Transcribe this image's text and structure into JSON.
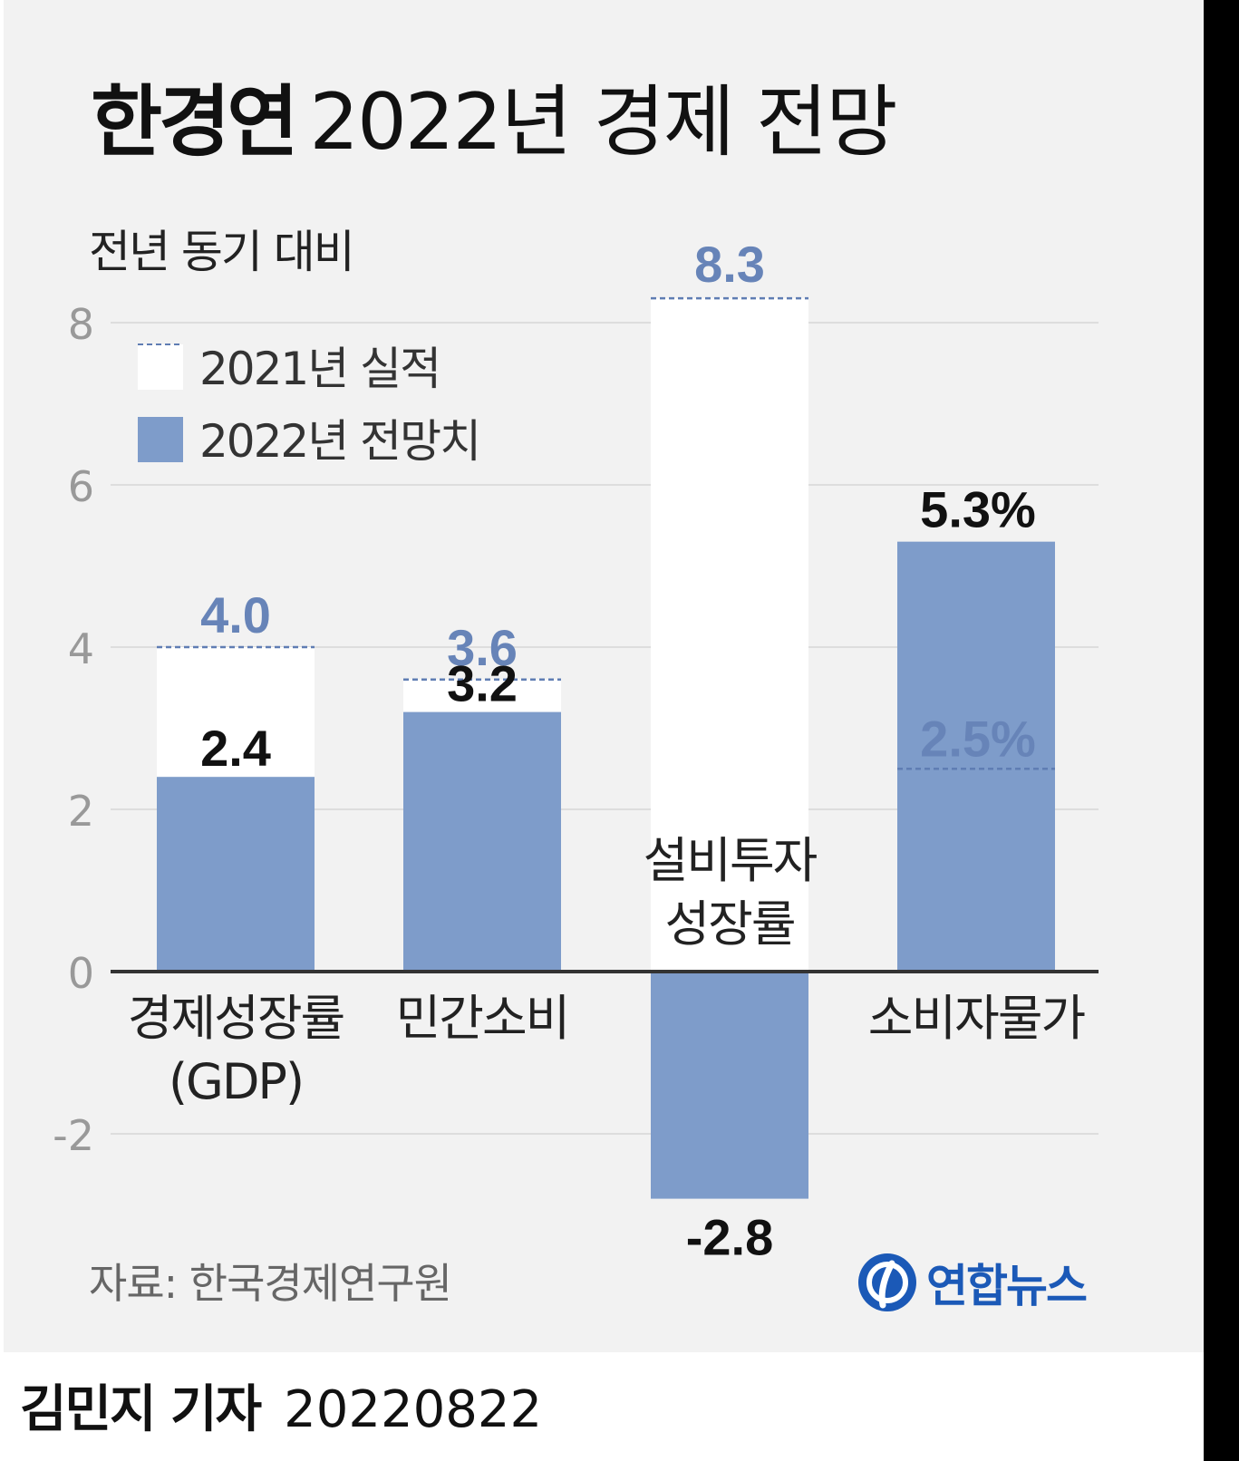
{
  "title": {
    "main": "한경연",
    "rest": "2022년 경제 전망"
  },
  "subtitle": "전년 동기 대비",
  "source": "자료: 한국경제연구원",
  "logo": {
    "text": "연합뉴스",
    "icon": "yonhap-logo-icon"
  },
  "byline": {
    "name": "김민지 기자",
    "date": "20220822"
  },
  "colors": {
    "forecast": "#7e9cca",
    "actual_bg": "#ffffff",
    "actual_line": "#5f7db3",
    "actual_label": "#6784b8",
    "grid": "#dddddd",
    "axis": "#333333",
    "tick": "#999999",
    "background": "#f2f2f2"
  },
  "chart_data": {
    "type": "bar",
    "ylim": [
      -3,
      8.5
    ],
    "yticks": [
      8,
      6,
      4,
      2,
      0,
      -2
    ],
    "legend": [
      {
        "label": "2021년 실적",
        "style": "white-dashed"
      },
      {
        "label": "2022년 전망치",
        "style": "blue"
      }
    ],
    "categories": [
      {
        "label_lines": [
          "경제성장률",
          "(GDP)"
        ],
        "actual": 4.0,
        "forecast": 2.4,
        "actual_label": "4.0",
        "forecast_label": "2.4"
      },
      {
        "label_lines": [
          "민간소비"
        ],
        "actual": 3.6,
        "forecast": 3.2,
        "actual_label": "3.6",
        "forecast_label": "3.2"
      },
      {
        "label_lines": [
          "설비투자",
          "성장률"
        ],
        "actual": 8.3,
        "forecast": -2.8,
        "actual_label": "8.3",
        "forecast_label": "-2.8"
      },
      {
        "label_lines": [
          "소비자물가"
        ],
        "actual": 2.5,
        "forecast": 5.3,
        "actual_label": "2.5%",
        "forecast_label": "5.3%"
      }
    ]
  }
}
